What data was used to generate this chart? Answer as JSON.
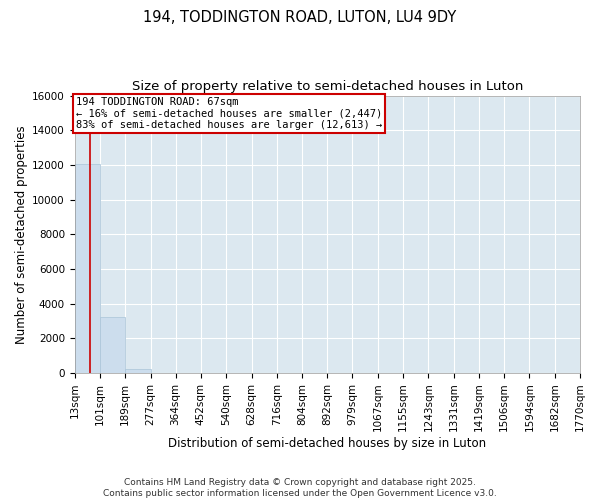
{
  "title_line1": "194, TODDINGTON ROAD, LUTON, LU4 9DY",
  "title_line2": "Size of property relative to semi-detached houses in Luton",
  "xlabel": "Distribution of semi-detached houses by size in Luton",
  "ylabel": "Number of semi-detached properties",
  "property_size": 67,
  "pct_smaller": 16,
  "pct_larger": 83,
  "count_smaller": 2447,
  "count_larger": 12613,
  "bin_edges": [
    13,
    101,
    189,
    277,
    364,
    452,
    540,
    628,
    716,
    804,
    892,
    979,
    1067,
    1155,
    1243,
    1331,
    1419,
    1506,
    1594,
    1682,
    1770
  ],
  "bin_labels": [
    "13sqm",
    "101sqm",
    "189sqm",
    "277sqm",
    "364sqm",
    "452sqm",
    "540sqm",
    "628sqm",
    "716sqm",
    "804sqm",
    "892sqm",
    "979sqm",
    "1067sqm",
    "1155sqm",
    "1243sqm",
    "1331sqm",
    "1419sqm",
    "1506sqm",
    "1594sqm",
    "1682sqm",
    "1770sqm"
  ],
  "bar_heights": [
    12050,
    3250,
    210,
    20,
    5,
    3,
    2,
    1,
    1,
    1,
    1,
    0,
    0,
    0,
    0,
    0,
    0,
    0,
    0,
    0
  ],
  "bar_color": "#ccdded",
  "bar_edgecolor": "#aac4d8",
  "highlight_color": "#cc0000",
  "annotation_box_edgecolor": "#cc0000",
  "fig_background": "#ffffff",
  "axes_background": "#dce8f0",
  "grid_color": "#ffffff",
  "ylim": [
    0,
    16000
  ],
  "yticks": [
    0,
    2000,
    4000,
    6000,
    8000,
    10000,
    12000,
    14000,
    16000
  ],
  "footer_text": "Contains HM Land Registry data © Crown copyright and database right 2025.\nContains public sector information licensed under the Open Government Licence v3.0.",
  "title_fontsize": 10.5,
  "subtitle_fontsize": 9.5,
  "axis_label_fontsize": 8.5,
  "tick_fontsize": 7.5,
  "annotation_fontsize": 7.5,
  "footer_fontsize": 6.5
}
